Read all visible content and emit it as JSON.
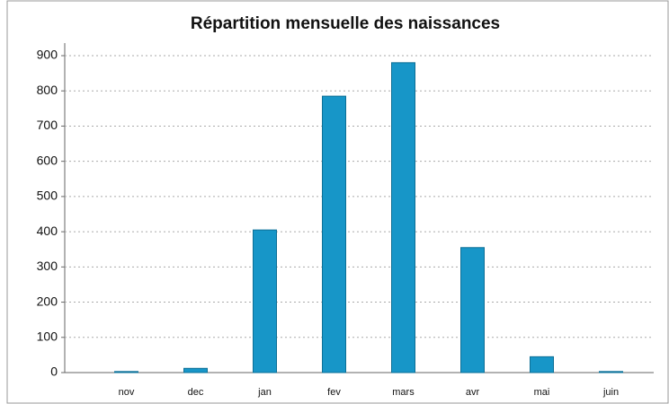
{
  "chart_data": {
    "type": "bar",
    "title": "Répartition mensuelle des naissances",
    "categories": [
      "nov",
      "dec",
      "jan",
      "fev",
      "mars",
      "avr",
      "mai",
      "juin"
    ],
    "values": [
      3,
      12,
      405,
      785,
      880,
      355,
      45,
      3
    ],
    "color": "#1796c8",
    "ylim": [
      0,
      900
    ],
    "yticks": [
      0,
      100,
      200,
      300,
      400,
      500,
      600,
      700,
      800,
      900
    ],
    "grid": true
  }
}
